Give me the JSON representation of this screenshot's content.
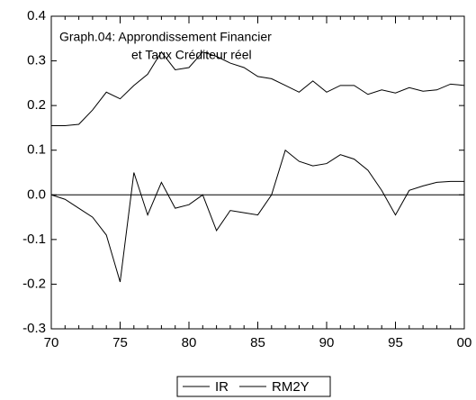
{
  "chart_data": {
    "type": "line",
    "title": [
      "Graph.04: Approndissement Financier",
      "et Taux Créditeur réel"
    ],
    "x": [
      70,
      71,
      72,
      73,
      74,
      75,
      76,
      77,
      78,
      79,
      80,
      81,
      82,
      83,
      84,
      85,
      86,
      87,
      88,
      89,
      90,
      91,
      92,
      93,
      94,
      95,
      96,
      97,
      98,
      99,
      100
    ],
    "series": [
      {
        "name": "IR",
        "color": "#000000",
        "values": [
          0.0,
          -0.01,
          -0.03,
          -0.05,
          -0.09,
          -0.195,
          0.05,
          -0.045,
          0.028,
          -0.03,
          -0.022,
          0.0,
          -0.08,
          -0.035,
          -0.04,
          -0.045,
          0.0,
          0.1,
          0.075,
          0.065,
          0.07,
          0.09,
          0.08,
          0.055,
          0.01,
          -0.045,
          0.01,
          0.02,
          0.028,
          0.03,
          0.03
        ]
      },
      {
        "name": "RM2Y",
        "color": "#000000",
        "values": [
          0.155,
          0.155,
          0.158,
          0.19,
          0.23,
          0.215,
          0.245,
          0.27,
          0.32,
          0.28,
          0.285,
          0.32,
          0.31,
          0.295,
          0.285,
          0.265,
          0.26,
          0.245,
          0.23,
          0.255,
          0.23,
          0.245,
          0.245,
          0.225,
          0.235,
          0.228,
          0.24,
          0.232,
          0.235,
          0.248,
          0.245
        ]
      }
    ],
    "xlim": [
      70,
      100
    ],
    "xticks": [
      70,
      75,
      80,
      85,
      90,
      95,
      {
        "value": 100,
        "label": "00"
      }
    ],
    "ylim": [
      -0.3,
      0.4
    ],
    "yticks": [
      -0.3,
      -0.2,
      -0.1,
      {
        "value": 0,
        "label": "0.0"
      },
      0.1,
      0.2,
      0.3,
      0.4
    ],
    "zero_line": true,
    "legend": "bottom"
  }
}
